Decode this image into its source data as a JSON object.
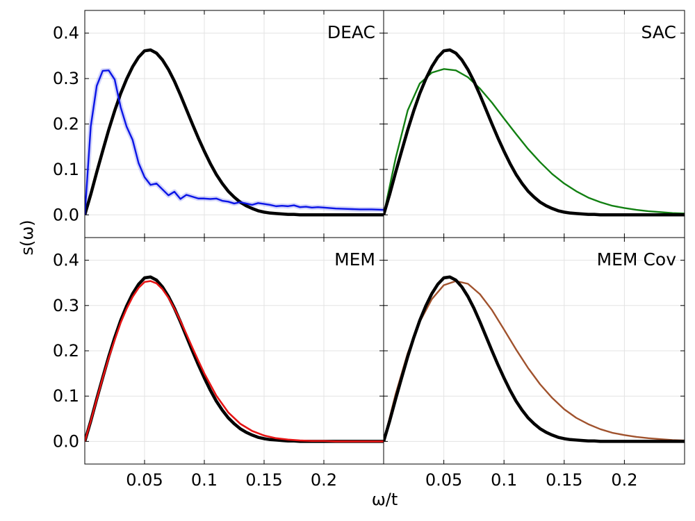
{
  "chart_data": {
    "type": "line",
    "xlabel": "ω/t",
    "ylabel": "s(ω)",
    "xlim": [
      0.0,
      0.25
    ],
    "ylim": [
      -0.05,
      0.45
    ],
    "xticks": [
      0.05,
      0.1,
      0.15,
      0.2
    ],
    "xtick_labels": [
      "0.05",
      "0.1",
      "0.15",
      "0.2"
    ],
    "yticks": [
      0.0,
      0.1,
      0.2,
      0.3,
      0.4
    ],
    "ytick_labels": [
      "0.0",
      "0.1",
      "0.2",
      "0.3",
      "0.4"
    ],
    "grid": true,
    "reference": {
      "color": "#000000",
      "x": [
        0,
        0.005,
        0.01,
        0.015,
        0.02,
        0.025,
        0.03,
        0.035,
        0.04,
        0.045,
        0.05,
        0.055,
        0.06,
        0.065,
        0.07,
        0.075,
        0.08,
        0.085,
        0.09,
        0.095,
        0.1,
        0.105,
        0.11,
        0.115,
        0.12,
        0.125,
        0.13,
        0.135,
        0.14,
        0.145,
        0.15,
        0.155,
        0.16,
        0.165,
        0.17,
        0.175,
        0.18,
        0.19,
        0.2,
        0.21,
        0.22,
        0.23,
        0.24,
        0.25
      ],
      "y": [
        0,
        0.045,
        0.094,
        0.141,
        0.187,
        0.229,
        0.267,
        0.299,
        0.326,
        0.347,
        0.361,
        0.363,
        0.356,
        0.341,
        0.32,
        0.294,
        0.264,
        0.232,
        0.2,
        0.169,
        0.14,
        0.113,
        0.089,
        0.069,
        0.052,
        0.039,
        0.028,
        0.02,
        0.014,
        0.009,
        0.006,
        0.004,
        0.003,
        0.002,
        0.001,
        0.001,
        0.0,
        0.0,
        0.0,
        0.0,
        0.0,
        0.0,
        0.0,
        0.0
      ]
    },
    "panels": [
      {
        "label": "DEAC",
        "series": [
          {
            "color": "#0a14e6",
            "x": [
              0,
              0.005,
              0.01,
              0.015,
              0.02,
              0.025,
              0.03,
              0.035,
              0.04,
              0.045,
              0.05,
              0.055,
              0.06,
              0.065,
              0.07,
              0.075,
              0.08,
              0.085,
              0.09,
              0.095,
              0.1,
              0.105,
              0.11,
              0.115,
              0.12,
              0.125,
              0.13,
              0.135,
              0.14,
              0.145,
              0.15,
              0.155,
              0.16,
              0.165,
              0.17,
              0.175,
              0.18,
              0.185,
              0.19,
              0.195,
              0.2,
              0.21,
              0.22,
              0.23,
              0.24,
              0.25
            ],
            "y": [
              0,
              0.195,
              0.284,
              0.317,
              0.318,
              0.298,
              0.237,
              0.194,
              0.165,
              0.114,
              0.083,
              0.066,
              0.069,
              0.056,
              0.043,
              0.051,
              0.035,
              0.044,
              0.04,
              0.036,
              0.036,
              0.035,
              0.036,
              0.031,
              0.029,
              0.025,
              0.028,
              0.025,
              0.022,
              0.026,
              0.024,
              0.022,
              0.019,
              0.02,
              0.019,
              0.021,
              0.017,
              0.018,
              0.016,
              0.017,
              0.016,
              0.014,
              0.013,
              0.012,
              0.012,
              0.011
            ]
          }
        ]
      },
      {
        "label": "SAC",
        "series": [
          {
            "color": "#128012",
            "x": [
              0,
              0.01,
              0.02,
              0.03,
              0.04,
              0.05,
              0.06,
              0.07,
              0.08,
              0.09,
              0.1,
              0.11,
              0.12,
              0.13,
              0.14,
              0.15,
              0.16,
              0.17,
              0.18,
              0.19,
              0.2,
              0.21,
              0.22,
              0.23,
              0.24,
              0.25
            ],
            "y": [
              0,
              0.125,
              0.23,
              0.289,
              0.313,
              0.321,
              0.318,
              0.303,
              0.278,
              0.247,
              0.212,
              0.178,
              0.145,
              0.116,
              0.09,
              0.069,
              0.052,
              0.038,
              0.028,
              0.02,
              0.015,
              0.011,
              0.008,
              0.006,
              0.004,
              0.003
            ]
          }
        ]
      },
      {
        "label": "MEM",
        "series": [
          {
            "color": "#e61414",
            "x": [
              0,
              0.005,
              0.01,
              0.015,
              0.02,
              0.025,
              0.03,
              0.035,
              0.04,
              0.045,
              0.05,
              0.055,
              0.06,
              0.065,
              0.07,
              0.075,
              0.08,
              0.085,
              0.09,
              0.095,
              0.1,
              0.11,
              0.12,
              0.13,
              0.14,
              0.15,
              0.16,
              0.17,
              0.18,
              0.19,
              0.2,
              0.21,
              0.22,
              0.25
            ],
            "y": [
              0,
              0.045,
              0.093,
              0.14,
              0.184,
              0.224,
              0.262,
              0.293,
              0.319,
              0.339,
              0.352,
              0.354,
              0.349,
              0.336,
              0.317,
              0.293,
              0.266,
              0.237,
              0.207,
              0.178,
              0.15,
              0.101,
              0.064,
              0.039,
              0.023,
              0.013,
              0.007,
              0.004,
              0.002,
              0.001,
              0.001,
              0.0,
              0.0,
              0.0
            ]
          }
        ]
      },
      {
        "label": "MEM Cov",
        "series": [
          {
            "color": "#a0522d",
            "x": [
              0,
              0.01,
              0.02,
              0.03,
              0.04,
              0.05,
              0.06,
              0.07,
              0.08,
              0.09,
              0.1,
              0.11,
              0.12,
              0.13,
              0.14,
              0.15,
              0.16,
              0.17,
              0.18,
              0.19,
              0.2,
              0.21,
              0.22,
              0.23,
              0.24,
              0.25
            ],
            "y": [
              0,
              0.105,
              0.195,
              0.264,
              0.314,
              0.345,
              0.354,
              0.348,
              0.325,
              0.29,
              0.247,
              0.203,
              0.162,
              0.126,
              0.096,
              0.071,
              0.052,
              0.038,
              0.027,
              0.019,
              0.014,
              0.01,
              0.007,
              0.005,
              0.003,
              0.002
            ]
          }
        ]
      }
    ]
  }
}
